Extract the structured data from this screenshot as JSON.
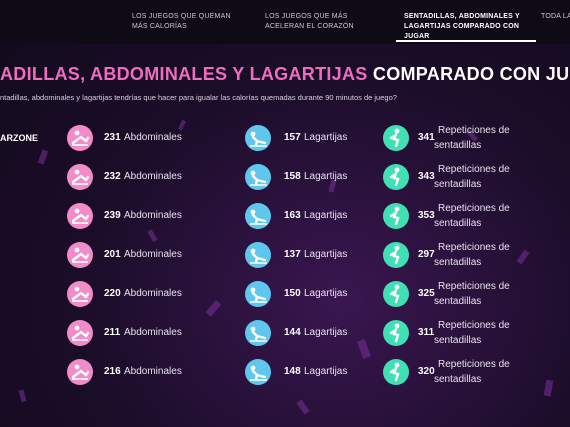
{
  "nav": {
    "tabs": [
      {
        "label": "LOS JUEGOS QUE QUEMAN MÁS CALORÍAS",
        "active": false
      },
      {
        "label": "LOS JUEGOS QUE MÁS ACELERAN EL CORAZÓN",
        "active": false
      },
      {
        "label": "SENTADILLAS, ABDOMINALES Y LAGARTIJAS COMPARADO CON JUGAR",
        "active": true
      },
      {
        "label": "TODA LA I",
        "active": false
      }
    ]
  },
  "header": {
    "title_pink": "ADILLAS, ABDOMINALES Y LAGARTIJAS",
    "title_white": "COMPARADO CON JUGAR",
    "subtitle": "ntadillas, abdominales y lagartijas tendrías que hacer para igualar las calorías quemadas durante 90 minutos de juego?"
  },
  "games": [
    "ARZONE",
    null,
    null,
    null,
    null,
    null,
    null
  ],
  "columns": [
    {
      "unit": "Abdominales",
      "color": "#f28bc9",
      "values": [
        231,
        232,
        239,
        201,
        220,
        211,
        216
      ]
    },
    {
      "unit": "Lagartijas",
      "color": "#5fc6ee",
      "values": [
        157,
        158,
        163,
        137,
        150,
        144,
        148
      ]
    },
    {
      "unit_line1": "Repeticiones de",
      "unit_line2": "sentadillas",
      "color": "#40e0b4",
      "values": [
        341,
        343,
        353,
        297,
        325,
        311,
        320
      ]
    }
  ]
}
